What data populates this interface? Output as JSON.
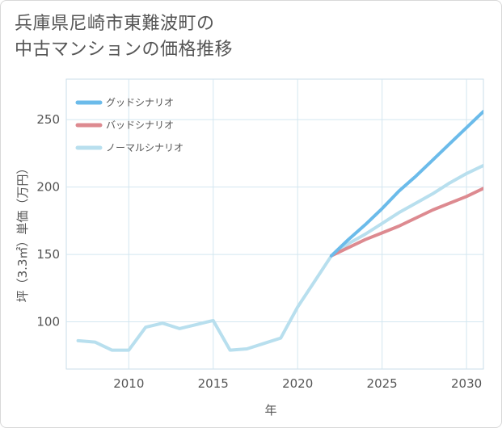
{
  "title_line1": "兵庫県尼崎市東難波町の",
  "title_line2": "中古マンションの価格推移",
  "chart_data": {
    "type": "line",
    "title": "兵庫県尼崎市東難波町の中古マンションの価格推移",
    "xlabel": "年",
    "ylabel": "坪（3.3㎡）単価（万円）",
    "xlim": [
      2006.3,
      2031
    ],
    "ylim": [
      65,
      280
    ],
    "xticks": [
      2010,
      2015,
      2020,
      2025,
      2030
    ],
    "yticks": [
      100,
      150,
      200,
      250
    ],
    "grid": true,
    "legend_position": "top-left",
    "series": [
      {
        "name": "グッドシナリオ",
        "color": "#6bbbea",
        "x": [
          2022,
          2023,
          2024,
          2025,
          2026,
          2027,
          2028,
          2029,
          2030,
          2031
        ],
        "y": [
          149,
          161,
          172,
          184,
          197,
          208,
          220,
          232,
          244,
          256
        ]
      },
      {
        "name": "バッドシナリオ",
        "color": "#dd8a90",
        "x": [
          2022,
          2023,
          2024,
          2025,
          2026,
          2027,
          2028,
          2029,
          2030,
          2031
        ],
        "y": [
          149,
          155,
          161,
          166,
          171,
          177,
          183,
          188,
          193,
          199
        ]
      },
      {
        "name": "ノーマルシナリオ",
        "color": "#b8dfee",
        "x": [
          2007,
          2008,
          2009,
          2010,
          2011,
          2012,
          2013,
          2014,
          2015,
          2016,
          2017,
          2018,
          2019,
          2020,
          2021,
          2022,
          2023,
          2024,
          2025,
          2026,
          2027,
          2028,
          2029,
          2030,
          2031
        ],
        "y": [
          86,
          85,
          79,
          79,
          96,
          99,
          95,
          98,
          101,
          79,
          80,
          84,
          88,
          111,
          130,
          149,
          158,
          165,
          173,
          181,
          188,
          195,
          203,
          210,
          216
        ]
      }
    ]
  }
}
